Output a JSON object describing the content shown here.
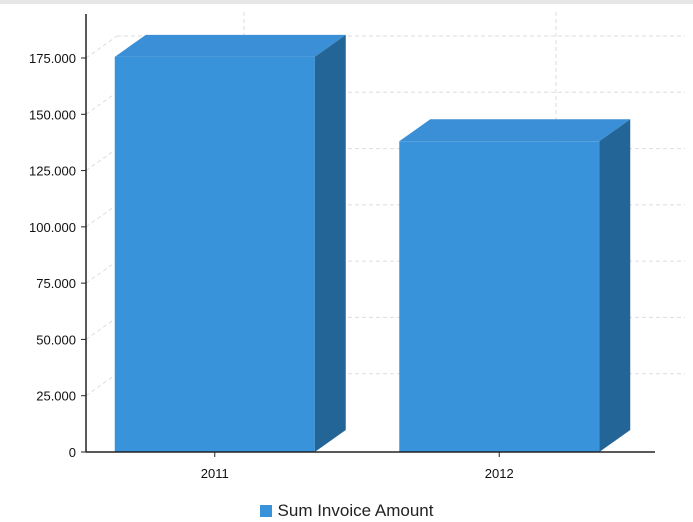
{
  "chart_data": {
    "type": "bar",
    "title": "",
    "xlabel": "",
    "ylabel": "",
    "categories": [
      "2011",
      "2012"
    ],
    "series": [
      {
        "name": "Sum Invoice Amount",
        "values": [
          175500,
          138000
        ]
      }
    ],
    "ylim": [
      0,
      175000
    ],
    "ytick_values": [
      0,
      25000,
      50000,
      75000,
      100000,
      125000,
      150000,
      175000
    ],
    "ytick_labels": [
      "0",
      "25.000",
      "50.000",
      "75.000",
      "100.000",
      "125.000",
      "150.000",
      "175.000"
    ],
    "grid": true,
    "three_d": true,
    "legend_position": "bottom"
  },
  "colors": {
    "bar_front": "#3893db",
    "bar_top": "#3a8fd6",
    "bar_side": "#246597",
    "grid": "#dddddd",
    "axis": "#222222"
  },
  "legend": {
    "label": "Sum Invoice Amount",
    "swatch_color": "#3893db"
  }
}
